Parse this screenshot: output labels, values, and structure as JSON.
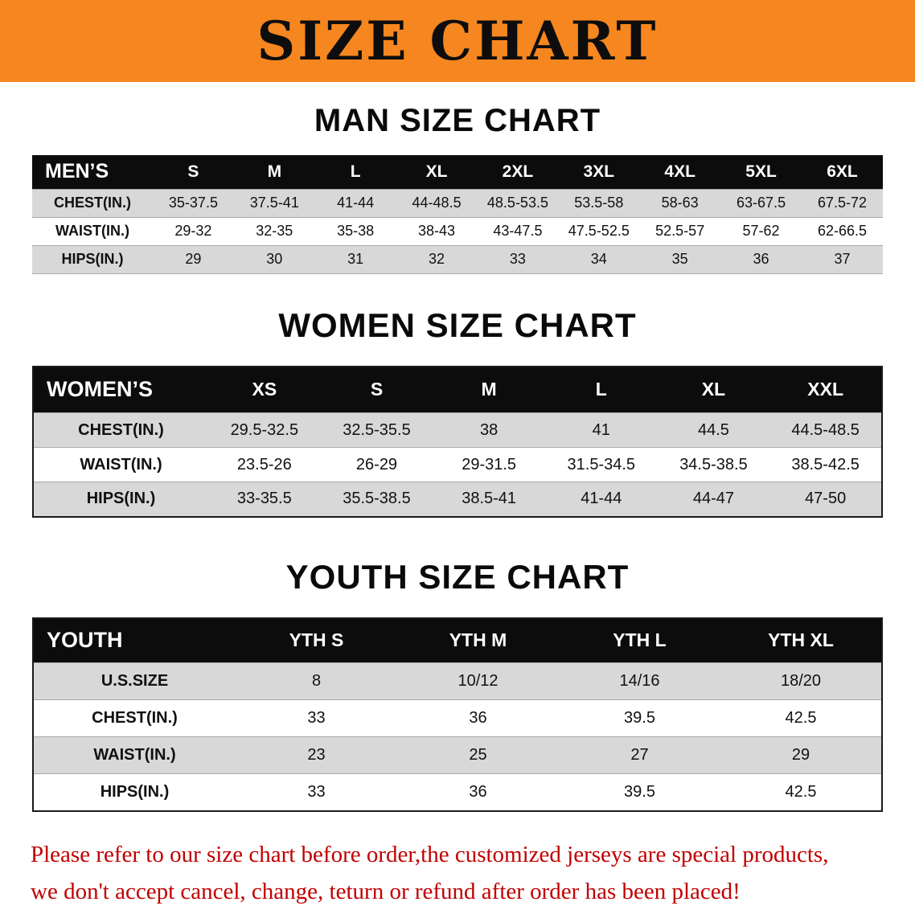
{
  "banner": {
    "title": "SIZE CHART",
    "bg_color": "#f6861f",
    "text_color": "#0d0d0d"
  },
  "men": {
    "title": "MAN SIZE CHART",
    "table": {
      "header": [
        "MEN’S",
        "S",
        "M",
        "L",
        "XL",
        "2XL",
        "3XL",
        "4XL",
        "5XL",
        "6XL"
      ],
      "rows": [
        [
          "CHEST(IN.)",
          "35-37.5",
          "37.5-41",
          "41-44",
          "44-48.5",
          "48.5-53.5",
          "53.5-58",
          "58-63",
          "63-67.5",
          "67.5-72"
        ],
        [
          "WAIST(IN.)",
          "29-32",
          "32-35",
          "35-38",
          "38-43",
          "43-47.5",
          "47.5-52.5",
          "52.5-57",
          "57-62",
          "62-66.5"
        ],
        [
          "HIPS(IN.)",
          "29",
          "30",
          "31",
          "32",
          "33",
          "34",
          "35",
          "36",
          "37"
        ]
      ]
    }
  },
  "women": {
    "title": "WOMEN SIZE CHART",
    "table": {
      "header": [
        "WOMEN’S",
        "XS",
        "S",
        "M",
        "L",
        "XL",
        "XXL"
      ],
      "rows": [
        [
          "CHEST(IN.)",
          "29.5-32.5",
          "32.5-35.5",
          "38",
          "41",
          "44.5",
          "44.5-48.5"
        ],
        [
          "WAIST(IN.)",
          "23.5-26",
          "26-29",
          "29-31.5",
          "31.5-34.5",
          "34.5-38.5",
          "38.5-42.5"
        ],
        [
          "HIPS(IN.)",
          "33-35.5",
          "35.5-38.5",
          "38.5-41",
          "41-44",
          "44-47",
          "47-50"
        ]
      ]
    }
  },
  "youth": {
    "title": "YOUTH SIZE CHART",
    "table": {
      "header": [
        "YOUTH",
        "YTH S",
        "YTH M",
        "YTH L",
        "YTH XL"
      ],
      "rows": [
        [
          "U.S.SIZE",
          "8",
          "10/12",
          "14/16",
          "18/20"
        ],
        [
          "CHEST(IN.)",
          "33",
          "36",
          "39.5",
          "42.5"
        ],
        [
          "WAIST(IN.)",
          "23",
          "25",
          "27",
          "29"
        ],
        [
          "HIPS(IN.)",
          "33",
          "36",
          "39.5",
          "42.5"
        ]
      ]
    }
  },
  "footer": {
    "line1": "Please refer to our size chart before order,the customized jerseys are special products,",
    "line2": "we don't accept cancel, change, teturn or refund after order has been placed!",
    "text_color": "#c00000"
  },
  "colors": {
    "banner_orange": "#f6861f",
    "table_header_bg": "#0c0c0c",
    "row_shade_gray": "#d8d8d8",
    "footer_red": "#c00000"
  }
}
